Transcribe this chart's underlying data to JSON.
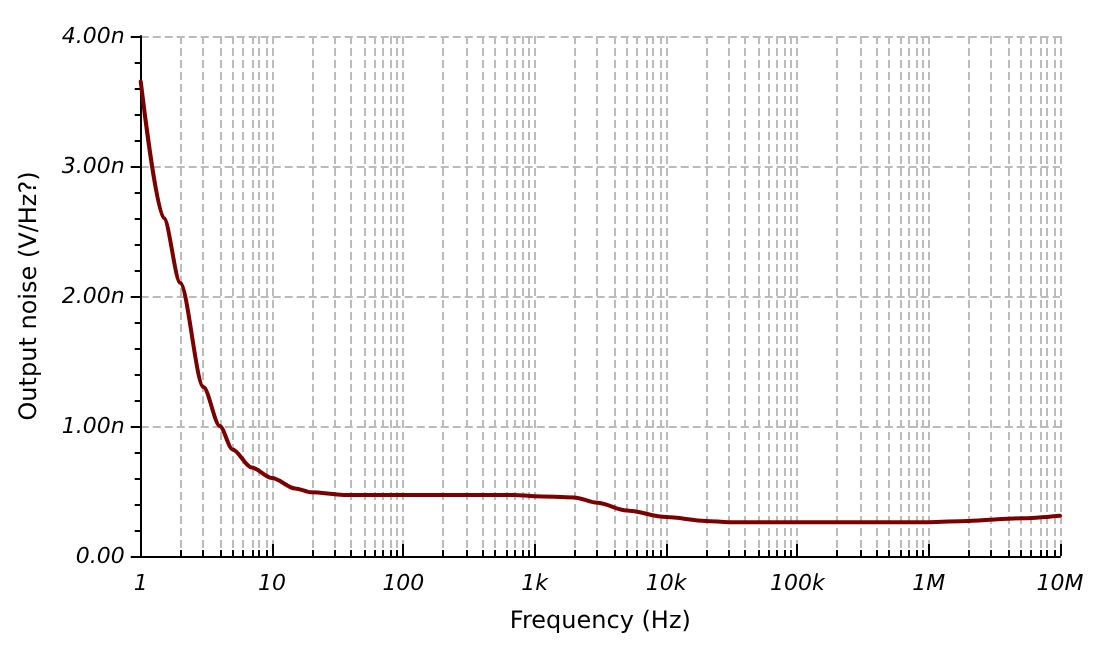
{
  "chart_data": {
    "type": "line",
    "xlabel": "Frequency (Hz)",
    "ylabel": "Output noise (V/Hz?)",
    "x": [
      1,
      1.5,
      2,
      3,
      4,
      5,
      7,
      10,
      15,
      20,
      35,
      100,
      700,
      1000,
      2000,
      3000,
      5000,
      10000,
      20000,
      30000,
      100000,
      1000000,
      2000000,
      5000000,
      10000000
    ],
    "series": [
      {
        "color": "#7b0000",
        "values": [
          3.65,
          2.6,
          2.1,
          1.3,
          1.0,
          0.82,
          0.68,
          0.6,
          0.52,
          0.49,
          0.47,
          0.47,
          0.47,
          0.46,
          0.45,
          0.41,
          0.35,
          0.3,
          0.27,
          0.26,
          0.26,
          0.26,
          0.27,
          0.29,
          0.31
        ]
      }
    ],
    "log": "x",
    "xlim": [
      1,
      10000000
    ],
    "xticks": [
      1,
      10,
      100,
      {
        "value": 1000,
        "label": "1k"
      },
      {
        "value": 10000,
        "label": "10k"
      },
      {
        "value": 100000,
        "label": "100k"
      },
      {
        "value": 1000000,
        "label": "1M"
      },
      {
        "value": 10000000,
        "label": "10M"
      }
    ],
    "ylim": [
      0,
      4
    ],
    "yticks": [
      {
        "value": 0,
        "label": "0.00"
      },
      {
        "value": 1,
        "label": "1.00n"
      },
      {
        "value": 2,
        "label": "2.00n"
      },
      {
        "value": 3,
        "label": "3.00n"
      },
      {
        "value": 4,
        "label": "4.00n"
      }
    ],
    "grid": true,
    "marker": "none",
    "line_style": "solid"
  }
}
